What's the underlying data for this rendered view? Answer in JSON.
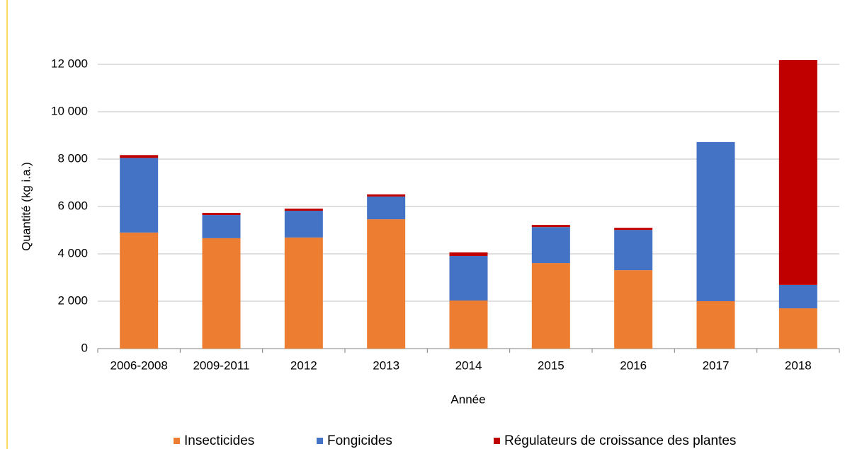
{
  "chart_data": {
    "type": "stacked_bar",
    "x_label": "Année",
    "y_label": "Quantité (kg i.a.)",
    "categories": [
      "2006-2008",
      "2009-2011",
      "2012",
      "2013",
      "2014",
      "2015",
      "2016",
      "2017",
      "2018"
    ],
    "series": [
      {
        "name": "Insecticides",
        "color": "#ed7d31",
        "values": [
          4900,
          4660,
          4690,
          5460,
          2030,
          3610,
          3310,
          2000,
          1700
        ]
      },
      {
        "name": "Fongicides",
        "color": "#4472c4",
        "values": [
          3150,
          980,
          1130,
          960,
          1880,
          1520,
          1700,
          6720,
          990
        ]
      },
      {
        "name": "Régulateurs de croissance des plantes",
        "color": "#c00000",
        "values": [
          120,
          90,
          90,
          90,
          150,
          90,
          90,
          0,
          9490
        ]
      }
    ],
    "ylim": [
      0,
      12000
    ],
    "yticks": [
      0,
      {
        "value": 2000,
        "label": "2 000"
      },
      {
        "value": 4000,
        "label": "4 000"
      },
      {
        "value": 6000,
        "label": "6 000"
      },
      {
        "value": 8000,
        "label": "8 000"
      },
      {
        "value": 10000,
        "label": "10 000"
      },
      {
        "value": 12000,
        "label": "12 000"
      }
    ],
    "grid": true,
    "legend": "bottom"
  }
}
